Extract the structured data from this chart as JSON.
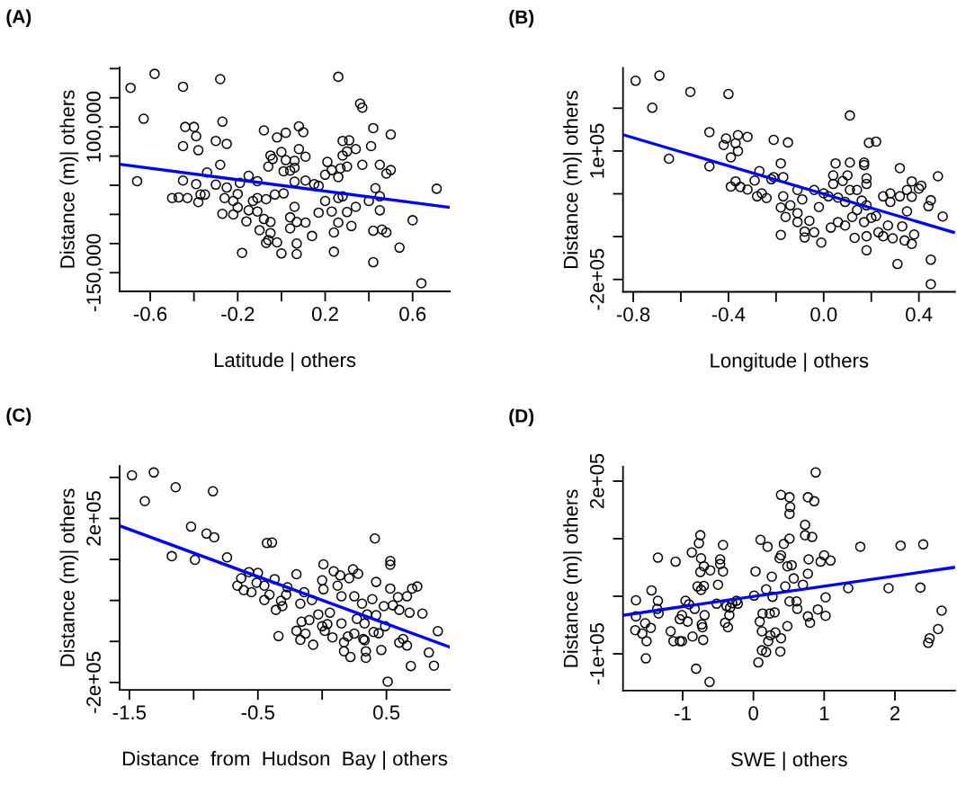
{
  "chart_data": [
    {
      "type": "scatter",
      "title": "(A)",
      "xlabel": "Latitude | others",
      "ylabel": "Distance (m)| others",
      "xlim": [
        -0.74,
        0.77
      ],
      "ylim": [
        -182000,
        202000
      ],
      "xticks": [
        {
          "value": -0.6,
          "label": "-0.6"
        },
        {
          "value": -0.4,
          "label": null
        },
        {
          "value": -0.2,
          "label": "-0.2"
        },
        {
          "value": 0,
          "label": null
        },
        {
          "value": 0.2,
          "label": "0.2"
        },
        {
          "value": 0.4,
          "label": null
        },
        {
          "value": 0.6,
          "label": "0.6"
        }
      ],
      "yticks": [
        {
          "value": 200000,
          "label": null
        },
        {
          "value": 150000,
          "label": null
        },
        {
          "value": 100000,
          "label": "100,000"
        },
        {
          "value": 50000,
          "label": null
        },
        {
          "value": 0,
          "label": null
        },
        {
          "value": -50000,
          "label": null
        },
        {
          "value": -100000,
          "label": null
        },
        {
          "value": -150000,
          "label": "-150,000"
        }
      ],
      "series": [
        {
          "marker": "circle",
          "color": "#000000",
          "x": [
            -0.69,
            -0.58,
            -0.63,
            -0.66,
            -0.45,
            -0.28,
            -0.44,
            -0.4,
            -0.39,
            -0.45,
            -0.38,
            -0.27,
            -0.3,
            -0.25,
            -0.45,
            -0.5,
            -0.47,
            -0.43,
            -0.39,
            -0.37,
            -0.35,
            -0.38,
            -0.34,
            -0.28,
            -0.3,
            -0.25,
            -0.26,
            -0.22,
            -0.2,
            -0.27,
            -0.22,
            -0.2,
            -0.19,
            -0.15,
            -0.16,
            -0.18,
            -0.15,
            -0.13,
            -0.11,
            -0.11,
            -0.1,
            -0.11,
            -0.08,
            -0.08,
            -0.07,
            -0.06,
            -0.05,
            -0.05,
            -0.07,
            -0.05,
            -0.06,
            -0.04,
            -0.03,
            -0.02,
            -0.02,
            0.0,
            0.01,
            0.0,
            0.02,
            0.02,
            0.01,
            0.04,
            0.06,
            0.06,
            0.08,
            0.1,
            0.08,
            0.06,
            0.11,
            0.06,
            0.04,
            0.04,
            0.07,
            0.11,
            0.07,
            0.07,
            0.11,
            0.14,
            0.15,
            0.17,
            0.17,
            0.2,
            0.2,
            0.21,
            0.23,
            0.26,
            0.26,
            0.28,
            0.28,
            0.3,
            0.31,
            0.27,
            0.3,
            0.34,
            0.26,
            0.23,
            0.26,
            0.24,
            0.24,
            0.28,
            0.3,
            0.32,
            0.34,
            0.36,
            0.37,
            0.37,
            0.42,
            0.41,
            0.4,
            0.43,
            0.45,
            0.45,
            0.45,
            0.42,
            0.46,
            0.48,
            0.42,
            0.5,
            0.5,
            0.48,
            0.54,
            0.6,
            0.64,
            0.71
          ],
          "values": [
            167000,
            191000,
            114000,
            7000,
            169000,
            182000,
            100000,
            100000,
            84000,
            67000,
            60000,
            109000,
            76000,
            71000,
            8000,
            -22000,
            -21000,
            -22000,
            2000,
            -16000,
            -16000,
            -29000,
            22000,
            35000,
            1000,
            -4000,
            -22000,
            -27000,
            -15000,
            -49000,
            -50000,
            -38000,
            4000,
            16000,
            -62000,
            -116000,
            -43000,
            -27000,
            -45000,
            7000,
            -77000,
            -22000,
            94000,
            -58000,
            -99000,
            -94000,
            -63000,
            -82000,
            -24000,
            51000,
            32000,
            45000,
            -16000,
            -98000,
            82000,
            57000,
            -14000,
            -117000,
            90000,
            43000,
            24000,
            25000,
            30000,
            6000,
            101000,
            91000,
            62000,
            42000,
            49000,
            -37000,
            -55000,
            -74000,
            -63000,
            -64000,
            -100000,
            -118000,
            8000,
            -87000,
            2000,
            -1000,
            -47000,
            -27000,
            18000,
            40000,
            26000,
            14000,
            186000,
            76000,
            51000,
            58000,
            77000,
            29000,
            32000,
            62000,
            -22000,
            -45000,
            -64000,
            -81000,
            -114000,
            -19000,
            -46000,
            -70000,
            -37000,
            140000,
            133000,
            35000,
            98000,
            67000,
            -27000,
            -5000,
            -43000,
            35000,
            -19000,
            -78000,
            -76000,
            -81000,
            -132000,
            87000,
            26000,
            20000,
            -107000,
            -60000,
            -168000,
            -6000
          ]
        },
        {
          "type": "line",
          "color": "#0000ff",
          "x": [
            -0.74,
            0.77
          ],
          "values": [
            36000,
            -38000
          ]
        }
      ]
    },
    {
      "type": "scatter",
      "title": "(B)",
      "xlabel": "Longitude | others",
      "ylabel": "Distance (m)| others",
      "xlim": [
        -0.843,
        0.552
      ],
      "ylim": [
        -229000,
        294000
      ],
      "xticks": [
        {
          "value": -0.8,
          "label": "-0.8"
        },
        {
          "value": -0.6,
          "label": null
        },
        {
          "value": -0.4,
          "label": "-0.4"
        },
        {
          "value": -0.2,
          "label": null
        },
        {
          "value": 0,
          "label": "0.0"
        },
        {
          "value": 0.2,
          "label": null
        },
        {
          "value": 0.4,
          "label": "0.4"
        }
      ],
      "yticks": [
        {
          "value": 200000,
          "label": null
        },
        {
          "value": 100000,
          "label": "1e+05"
        },
        {
          "value": 0,
          "label": null
        },
        {
          "value": -100000,
          "label": null
        },
        {
          "value": -200000,
          "label": "-2e+05"
        }
      ],
      "series": [
        {
          "marker": "circle",
          "color": "#000000",
          "x": [
            -0.79,
            -0.69,
            -0.72,
            -0.56,
            -0.4,
            -0.65,
            -0.48,
            -0.48,
            -0.41,
            -0.42,
            -0.36,
            -0.37,
            -0.36,
            -0.32,
            -0.39,
            -0.39,
            -0.37,
            -0.35,
            -0.32,
            -0.29,
            -0.27,
            -0.28,
            -0.26,
            -0.24,
            -0.22,
            -0.21,
            -0.21,
            -0.15,
            -0.18,
            -0.17,
            -0.17,
            -0.18,
            -0.18,
            -0.16,
            -0.14,
            -0.11,
            -0.11,
            -0.11,
            -0.09,
            -0.08,
            -0.08,
            -0.06,
            -0.04,
            -0.04,
            -0.02,
            -0.01,
            0.0,
            0.02,
            0.03,
            0.04,
            0.04,
            0.05,
            0.06,
            0.06,
            0.09,
            0.09,
            0.08,
            0.1,
            0.11,
            0.11,
            0.11,
            0.12,
            0.14,
            0.14,
            0.13,
            0.16,
            0.17,
            0.17,
            0.17,
            0.18,
            0.18,
            0.18,
            0.18,
            0.18,
            0.19,
            0.22,
            0.2,
            0.22,
            0.23,
            0.25,
            0.25,
            0.27,
            0.28,
            0.28,
            0.29,
            0.32,
            0.31,
            0.32,
            0.33,
            0.34,
            0.35,
            0.35,
            0.37,
            0.37,
            0.37,
            0.38,
            0.4,
            0.41,
            0.44,
            0.45,
            0.45,
            0.45,
            0.48,
            0.5
          ],
          "values": [
            264000,
            276000,
            201000,
            238000,
            233000,
            82000,
            144000,
            64000,
            129000,
            114000,
            137000,
            118000,
            100000,
            133000,
            85000,
            17000,
            29000,
            16000,
            10000,
            31000,
            53000,
            -6000,
            1000,
            -10000,
            34000,
            39000,
            126000,
            120000,
            71000,
            39000,
            -6000,
            -32000,
            -96000,
            -54000,
            -27000,
            -45000,
            -66000,
            9000,
            -13000,
            -88000,
            -102000,
            -63000,
            -90000,
            9000,
            -31000,
            -114000,
            1000,
            -6000,
            -79000,
            43000,
            23000,
            71000,
            -9000,
            -66000,
            -74000,
            -19000,
            30000,
            43000,
            183000,
            73000,
            9000,
            -54000,
            -38000,
            9000,
            -103000,
            -16000,
            -66000,
            73000,
            67000,
            36000,
            23000,
            -27000,
            -99000,
            -132000,
            119000,
            122000,
            -56000,
            -52000,
            -90000,
            -6000,
            -99000,
            -74000,
            1000,
            -19000,
            -104000,
            60000,
            -164000,
            -6000,
            -76000,
            -109000,
            -41000,
            9000,
            29000,
            -7000,
            -117000,
            -95000,
            12000,
            19000,
            -29000,
            -15000,
            -154000,
            -211000,
            41000,
            -53000
          ]
        },
        {
          "type": "line",
          "color": "#0000ff",
          "x": [
            -0.843,
            0.546
          ],
          "values": [
            138000,
            -90000
          ]
        }
      ]
    },
    {
      "type": "scatter",
      "title": "(C)",
      "xlabel": "Distance  from  Hudson  Bay | others",
      "ylabel": "Distance (m)| others",
      "xlim": [
        -1.576,
        0.993
      ],
      "ylim": [
        -218000,
        328000
      ],
      "xticks": [
        {
          "value": -1.5,
          "label": "-1.5"
        },
        {
          "value": -1.0,
          "label": null
        },
        {
          "value": -0.5,
          "label": "-0.5"
        },
        {
          "value": 0,
          "label": null
        },
        {
          "value": 0.5,
          "label": "0.5"
        }
      ],
      "yticks": [
        {
          "value": 300000,
          "label": null
        },
        {
          "value": 200000,
          "label": "2e+05"
        },
        {
          "value": 100000,
          "label": null
        },
        {
          "value": 0,
          "label": null
        },
        {
          "value": -100000,
          "label": null
        },
        {
          "value": -200000,
          "label": "-2e+05"
        }
      ],
      "series": [
        {
          "marker": "circle",
          "color": "#000000",
          "x": [
            -1.48,
            -1.31,
            -1.38,
            -1.14,
            -0.85,
            -1.02,
            -0.9,
            -0.84,
            -1.17,
            -0.99,
            -0.74,
            -0.43,
            -0.39,
            0.41,
            -0.57,
            -0.5,
            -0.63,
            -0.66,
            -0.61,
            -0.55,
            -0.51,
            -0.45,
            -0.37,
            -0.45,
            -0.41,
            -0.32,
            -0.36,
            -0.31,
            -0.27,
            -0.28,
            -0.2,
            -0.17,
            -0.14,
            -0.08,
            -0.34,
            -0.2,
            -0.17,
            -0.13,
            -0.16,
            -0.1,
            -0.07,
            -0.03,
            0.0,
            0.04,
            0.01,
            0.0,
            0.01,
            0.02,
            0.08,
            0.06,
            0.09,
            0.12,
            0.14,
            0.15,
            0.15,
            0.17,
            0.17,
            0.2,
            0.22,
            0.21,
            0.24,
            0.28,
            0.25,
            0.27,
            0.25,
            0.32,
            0.33,
            0.34,
            0.34,
            0.31,
            0.33,
            0.35,
            0.39,
            0.42,
            0.4,
            0.44,
            0.42,
            0.46,
            0.48,
            0.49,
            0.53,
            0.53,
            0.53,
            0.51,
            0.55,
            0.59,
            0.6,
            0.63,
            0.6,
            0.66,
            0.68,
            0.66,
            0.69,
            0.7,
            0.74,
            0.78,
            0.83,
            0.87,
            0.9
          ],
          "values": [
            305000,
            312000,
            242000,
            276000,
            266000,
            180000,
            163000,
            154000,
            108000,
            99000,
            105000,
            140000,
            141000,
            151000,
            69000,
            67000,
            54000,
            36000,
            25000,
            20000,
            43000,
            36000,
            52000,
            1000,
            14000,
            -1000,
            -23000,
            -14000,
            32000,
            14000,
            64000,
            -8000,
            20000,
            1000,
            -87000,
            -74000,
            -96000,
            -81000,
            -52000,
            -48000,
            -108000,
            -34000,
            -63000,
            -58000,
            88000,
            49000,
            27000,
            -74000,
            -90000,
            -30000,
            71000,
            36000,
            61000,
            10000,
            -56000,
            -102000,
            -124000,
            -88000,
            -138000,
            54000,
            76000,
            65000,
            10000,
            -45000,
            -81000,
            -94000,
            -97000,
            -124000,
            -140000,
            -8000,
            -56000,
            -34000,
            3000,
            45000,
            -77000,
            -80000,
            -36000,
            -121000,
            -14000,
            -63000,
            29000,
            96000,
            87000,
            -198000,
            -12000,
            8000,
            -23000,
            -94000,
            -103000,
            -110000,
            -30000,
            10000,
            -160000,
            29000,
            34000,
            -32000,
            -127000,
            -159000,
            -75000
          ]
        },
        {
          "type": "line",
          "color": "#0000ff",
          "x": [
            -1.576,
            0.993
          ],
          "values": [
            182000,
            -114000
          ]
        }
      ]
    },
    {
      "type": "scatter",
      "title": "(D)",
      "xlabel": "SWE | others",
      "ylabel": "Distance (m)| others",
      "xlim": [
        -1.843,
        2.85
      ],
      "ylim": [
        -164000,
        225000
      ],
      "xticks": [
        -1,
        0,
        1,
        2
      ],
      "yticks": [
        {
          "value": 200000,
          "label": "2e+05"
        },
        {
          "value": 100000,
          "label": null
        },
        {
          "value": 0,
          "label": null
        },
        {
          "value": -100000,
          "label": "-1e+05"
        }
      ],
      "series": [
        {
          "marker": "circle",
          "color": "#000000",
          "x": [
            -1.66,
            -1.67,
            -1.66,
            -1.57,
            -1.53,
            -1.51,
            -1.52,
            -1.44,
            -1.45,
            -1.35,
            -1.35,
            -1.36,
            -1.34,
            -1.17,
            -1.13,
            -1.1,
            -1.04,
            -1.04,
            -1.01,
            -1.01,
            -0.93,
            -0.96,
            -0.91,
            -0.87,
            -0.86,
            -0.81,
            -0.83,
            -0.77,
            -0.75,
            -0.79,
            -0.74,
            -0.7,
            -0.75,
            -0.74,
            -0.7,
            -0.69,
            -0.73,
            -0.72,
            -0.71,
            -0.61,
            -0.62,
            -0.52,
            -0.5,
            -0.47,
            -0.47,
            -0.43,
            -0.43,
            -0.4,
            -0.36,
            -0.38,
            -0.33,
            -0.34,
            -0.3,
            -0.24,
            -0.22,
            0.01,
            0.03,
            0.07,
            0.1,
            0.09,
            0.12,
            0.13,
            0.12,
            0.18,
            0.2,
            0.18,
            0.21,
            0.24,
            0.23,
            0.26,
            0.27,
            0.3,
            0.31,
            0.38,
            0.39,
            0.39,
            0.37,
            0.39,
            0.43,
            0.48,
            0.51,
            0.52,
            0.51,
            0.51,
            0.48,
            0.54,
            0.45,
            0.51,
            0.57,
            0.61,
            0.62,
            0.7,
            0.73,
            0.73,
            0.77,
            0.86,
            0.88,
            0.83,
            0.78,
            0.77,
            0.77,
            0.8,
            0.91,
            0.95,
            1.0,
            1.02,
            1.02,
            1.09,
            1.34,
            1.51,
            1.91,
            2.08,
            2.4,
            2.36,
            2.66,
            2.61,
            2.49,
            2.47
          ],
          "values": [
            -7000,
            -59000,
            -35000,
            -65000,
            -47000,
            -78000,
            -108000,
            10000,
            -55000,
            67000,
            -8000,
            -22000,
            -30000,
            -61000,
            -78000,
            60000,
            -40000,
            -78000,
            -78000,
            -33000,
            -44000,
            -8000,
            -14000,
            76000,
            -70000,
            -126000,
            -22000,
            92000,
            106000,
            17000,
            66000,
            52000,
            42000,
            11000,
            18000,
            -33000,
            -49000,
            -54000,
            -76000,
            45000,
            -149000,
            -13000,
            20000,
            64000,
            56000,
            43000,
            89000,
            -46000,
            -54000,
            -17000,
            -20000,
            -33000,
            -12000,
            -8000,
            -13000,
            1000,
            43000,
            -115000,
            98000,
            -44000,
            -61000,
            -30000,
            -94000,
            -97000,
            86000,
            12000,
            -78000,
            -68000,
            -30000,
            34000,
            -1000,
            -28000,
            -63000,
            -96000,
            -73000,
            176000,
            66000,
            71000,
            91000,
            -52000,
            172000,
            155000,
            143000,
            100000,
            52000,
            54000,
            17000,
            -9000,
            31000,
            -9000,
            -22000,
            20000,
            124000,
            106000,
            172000,
            165000,
            215000,
            103000,
            64000,
            39000,
            -35000,
            -46000,
            -23000,
            60000,
            71000,
            -2000,
            -34000,
            62000,
            14000,
            86000,
            14000,
            88000,
            90000,
            15000,
            -25000,
            -57000,
            -73000,
            -81000
          ]
        },
        {
          "type": "line",
          "color": "#0000ff",
          "x": [
            -1.843,
            2.83
          ],
          "values": [
            -33000,
            50000
          ]
        }
      ]
    }
  ]
}
